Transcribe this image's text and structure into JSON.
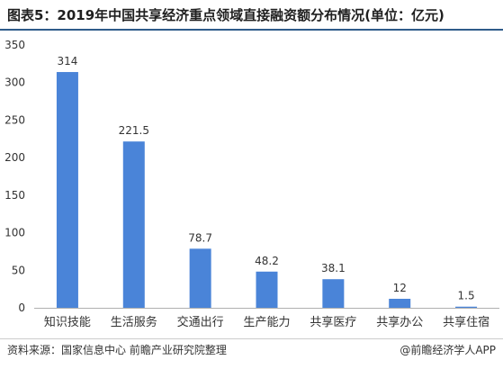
{
  "header": {
    "title": "图表5：2019年中国共享经济重点领域直接融资额分布情况(单位：亿元)"
  },
  "footer": {
    "source": "资料来源：国家信息中心 前瞻产业研究院整理",
    "brand": "@前瞻经济学人APP"
  },
  "colors": {
    "bar": "#4a84d8",
    "axis": "#b0b0b0",
    "tick_text": "#333333"
  },
  "chart_data": {
    "type": "bar",
    "title": "图表5：2019年中国共享经济重点领域直接融资额分布情况(单位：亿元)",
    "categories": [
      "知识技能",
      "生活服务",
      "交通出行",
      "生产能力",
      "共享医疗",
      "共享办公",
      "共享住宿"
    ],
    "values": [
      314,
      221.5,
      78.7,
      48.2,
      38.1,
      12,
      1.5
    ],
    "value_labels": [
      "314",
      "221.5",
      "78.7",
      "48.2",
      "38.1",
      "12",
      "1.5"
    ],
    "ylim": [
      0,
      350
    ],
    "yticks": [
      0,
      50,
      100,
      150,
      200,
      250,
      300,
      350
    ],
    "xlabel": "",
    "ylabel": "",
    "grid": false,
    "legend": "none"
  }
}
